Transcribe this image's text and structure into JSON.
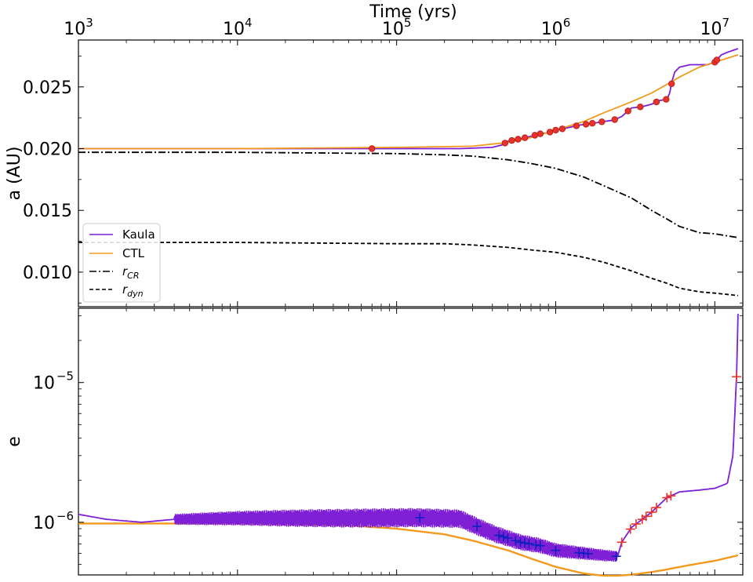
{
  "figure": {
    "top_axis_title": "Time (yrs)",
    "top_axis_ticks": [
      {
        "base": "10",
        "exp": "3",
        "value": 1000
      },
      {
        "base": "10",
        "exp": "4",
        "value": 10000
      },
      {
        "base": "10",
        "exp": "5",
        "value": 100000
      },
      {
        "base": "10",
        "exp": "6",
        "value": 1000000
      },
      {
        "base": "10",
        "exp": "7",
        "value": 10000000
      }
    ]
  },
  "colors": {
    "kaula": "#7f1fd6",
    "ctl": "#f29a1d",
    "rcr": "#000000",
    "rdyn": "#000000",
    "marker_red": "#e8332a",
    "marker_blue": "#1020c0"
  },
  "legend": {
    "placement": "lower-left",
    "entries": [
      {
        "key": "kaula",
        "label": "Kaula"
      },
      {
        "key": "ctl",
        "label": "CTL"
      },
      {
        "key": "rcr",
        "label": "r",
        "sub": "CR"
      },
      {
        "key": "rdyn",
        "label": "r",
        "sub": "dyn"
      }
    ]
  },
  "chart_data": [
    {
      "type": "line",
      "panel": "top",
      "ylabel": "a (AU)",
      "xscale": "log",
      "xlim": [
        1000,
        15000000
      ],
      "ylim": [
        0.0072,
        0.0288
      ],
      "yticks": [
        0.01,
        0.015,
        0.02,
        0.025
      ],
      "ytick_labels": [
        "0.010",
        "0.015",
        "0.020",
        "0.025"
      ],
      "grid": false,
      "series": [
        {
          "name": "Kaula",
          "key": "kaula",
          "style": "solid",
          "x": [
            1000,
            10000,
            100000,
            250000,
            400000,
            460000,
            500000,
            600000,
            700000,
            800000,
            900000,
            1000000,
            1200000,
            1400000,
            1600000,
            1800000,
            2000000,
            2300000,
            2600000,
            3000000,
            3500000,
            4000000,
            4500000,
            5000000,
            5200000,
            5400000,
            5600000,
            6000000,
            7000000,
            8000000,
            9000000,
            10000000,
            11000000,
            12000000,
            14000000
          ],
          "y": [
            0.02,
            0.02,
            0.02,
            0.02,
            0.0201,
            0.0203,
            0.0206,
            0.0208,
            0.021,
            0.0212,
            0.0213,
            0.0215,
            0.0217,
            0.0219,
            0.022,
            0.0221,
            0.0222,
            0.0223,
            0.0226,
            0.0233,
            0.0234,
            0.0236,
            0.0239,
            0.024,
            0.0245,
            0.0255,
            0.0262,
            0.0266,
            0.0268,
            0.0268,
            0.0268,
            0.027,
            0.0276,
            0.0278,
            0.0281
          ]
        },
        {
          "name": "CTL",
          "key": "ctl",
          "style": "solid",
          "x": [
            1000,
            10000,
            100000,
            300000,
            500000,
            700000,
            1000000,
            1500000,
            2000000,
            3000000,
            4000000,
            5000000,
            6000000,
            8000000,
            10000000,
            14000000
          ],
          "y": [
            0.02,
            0.02,
            0.0201,
            0.0202,
            0.0205,
            0.0209,
            0.0215,
            0.0222,
            0.0229,
            0.0238,
            0.0245,
            0.0252,
            0.0258,
            0.0266,
            0.027,
            0.0276
          ]
        },
        {
          "name": "r_CR",
          "key": "rcr",
          "style": "dashdot",
          "x": [
            1000,
            10000,
            100000,
            200000,
            300000,
            500000,
            700000,
            1000000,
            1500000,
            2000000,
            3000000,
            4000000,
            5000000,
            6000000,
            8000000,
            10000000,
            14000000
          ],
          "y": [
            0.0197,
            0.0197,
            0.0196,
            0.0195,
            0.0194,
            0.0191,
            0.0188,
            0.0184,
            0.0177,
            0.017,
            0.016,
            0.015,
            0.0143,
            0.0137,
            0.0132,
            0.0131,
            0.0128
          ]
        },
        {
          "name": "r_dyn",
          "key": "rdyn",
          "style": "dashed",
          "x": [
            1000,
            10000,
            100000,
            200000,
            300000,
            500000,
            700000,
            1000000,
            1500000,
            2000000,
            3000000,
            4000000,
            5000000,
            6000000,
            8000000,
            10000000,
            14000000
          ],
          "y": [
            0.0124,
            0.0124,
            0.0123,
            0.0123,
            0.0122,
            0.012,
            0.0118,
            0.0116,
            0.0112,
            0.0108,
            0.0101,
            0.0095,
            0.0091,
            0.0087,
            0.0084,
            0.0083,
            0.0081
          ]
        }
      ],
      "markers": {
        "shape": "circle",
        "color_key": "marker_red",
        "on_series": "kaula",
        "x": [
          70000,
          480000,
          530000,
          580000,
          640000,
          740000,
          800000,
          920000,
          1000000,
          1100000,
          1350000,
          1550000,
          1700000,
          1950000,
          2350000,
          2850000,
          3400000,
          4300000,
          4950000,
          5350000,
          10000000,
          10300000
        ]
      }
    },
    {
      "type": "line",
      "panel": "bottom",
      "ylabel": "e",
      "xscale": "log",
      "yscale": "log",
      "xlim": [
        1000,
        15000000
      ],
      "ylim": [
        4.2e-07,
        3.4e-05
      ],
      "yticks": [
        1e-06,
        1e-05
      ],
      "ytick_labels": [
        {
          "base": "10",
          "exp": "−6"
        },
        {
          "base": "10",
          "exp": "−5"
        }
      ],
      "grid": false,
      "series": [
        {
          "name": "Kaula",
          "key": "kaula",
          "style": "solid",
          "x": [
            1000,
            1500,
            2500,
            4000,
            10000,
            50000,
            130000,
            250000,
            330000,
            420000,
            600000,
            800000,
            1000000,
            1500000,
            2000000,
            2450000,
            2600000,
            3000000,
            3500000,
            4000000,
            5000000,
            6000000,
            8000000,
            10000000,
            12000000,
            13000000,
            13700000,
            14000000
          ],
          "y": [
            1.14e-06,
            1.05e-06,
            1e-06,
            1.05e-06,
            1.07e-06,
            1.07e-06,
            1.08e-06,
            1.06e-06,
            9.2e-07,
            8.2e-07,
            7.2e-07,
            6.8e-07,
            6.3e-07,
            6e-07,
            5.8e-07,
            5.7e-07,
            7.2e-07,
            9.2e-07,
            1.05e-06,
            1.18e-06,
            1.5e-06,
            1.65e-06,
            1.7e-06,
            1.75e-06,
            1.9e-06,
            3e-06,
            1.1e-05,
            3.1e-05
          ]
        },
        {
          "name": "CTL",
          "key": "ctl",
          "style": "solid",
          "x": [
            1000,
            10000,
            50000,
            100000,
            200000,
            300000,
            500000,
            700000,
            1000000,
            1500000,
            2000000,
            2500000,
            3000000,
            4000000,
            5000000,
            7000000,
            10000000,
            14000000
          ],
          "y": [
            9.8e-07,
            9.8e-07,
            9.5e-07,
            9e-07,
            8.2e-07,
            7.4e-07,
            6.3e-07,
            5.5e-07,
            4.8e-07,
            4.3e-07,
            4.15e-07,
            4.15e-07,
            4.22e-07,
            4.4e-07,
            4.6e-07,
            4.95e-07,
            5.3e-07,
            5.8e-07
          ]
        }
      ],
      "noise_band": {
        "series_key": "kaula",
        "x_range": [
          4000,
          2450000
        ]
      },
      "markers_blue": {
        "shape": "plus",
        "color_key": "marker_blue",
        "on_series": "kaula",
        "x": [
          140000,
          320000,
          440000,
          470000,
          500000,
          560000,
          600000,
          640000,
          680000,
          750000,
          800000,
          1000000,
          1400000,
          1500000,
          1600000,
          2400000
        ]
      },
      "markers_red": {
        "shape": "plus",
        "color_key": "marker_red",
        "on_series": "kaula",
        "x": [
          2600000,
          2950000,
          3200000,
          3500000,
          3700000,
          4000000,
          4300000,
          5000000,
          5300000,
          13700000
        ]
      }
    }
  ]
}
